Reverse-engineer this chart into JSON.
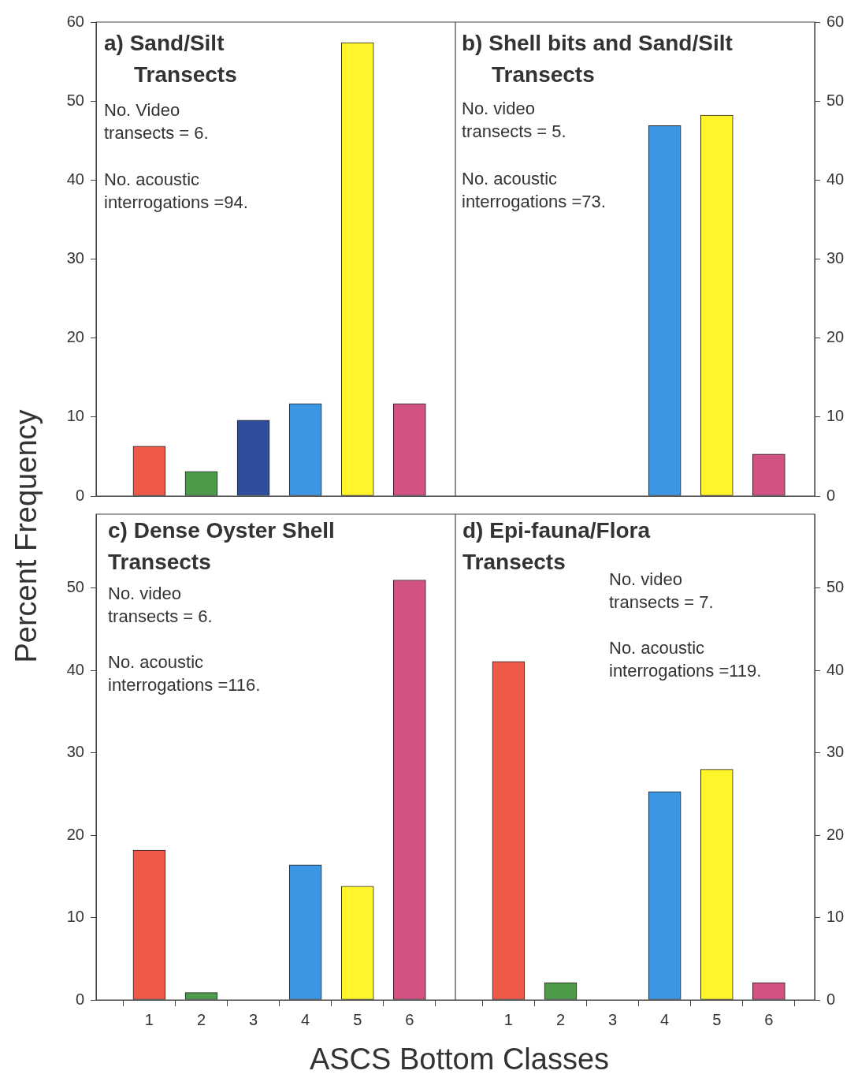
{
  "chart_data": [
    {
      "type": "bar",
      "title": "a) Sand/Silt Transects",
      "ylabel": "Percent Frequency",
      "categories": [
        "1",
        "2",
        "3",
        "4",
        "5",
        "6"
      ],
      "values": [
        6.3,
        3.1,
        9.6,
        11.7,
        57.4,
        11.7
      ],
      "colors": [
        "#ef5a48",
        "#4c9a4a",
        "#2e4d9c",
        "#3b97e3",
        "#fff52a",
        "#d25284"
      ],
      "ylim": [
        0,
        60
      ],
      "yticks": [
        0,
        10,
        20,
        30,
        40,
        50,
        60
      ],
      "tick_labels": "y",
      "annotations": [
        "No. Video\ntransects = 6.",
        "No. acoustic\ninterrogations =94."
      ]
    },
    {
      "type": "bar",
      "title": "b) Shell bits and Sand/Silt Transects",
      "categories": [
        "1",
        "2",
        "3",
        "4",
        "5",
        "6"
      ],
      "values": [
        0,
        0,
        0,
        46.9,
        48.2,
        5.3
      ],
      "colors": [
        "#ef5a48",
        "#4c9a4a",
        "#2e4d9c",
        "#3b97e3",
        "#fff52a",
        "#d25284"
      ],
      "ylim": [
        0,
        60
      ],
      "yticks": [
        0,
        10,
        20,
        30,
        40,
        50,
        60
      ],
      "tick_labels": "y",
      "annotations": [
        "No. video\ntransects = 5.",
        "No. acoustic\ninterrogations =73."
      ]
    },
    {
      "type": "bar",
      "title": "c) Dense Oyster Shell Transects",
      "xlabel": "ASCS Bottom Classes",
      "categories": [
        "1",
        "2",
        "3",
        "4",
        "5",
        "6"
      ],
      "values": [
        18.2,
        0.9,
        0,
        16.4,
        13.8,
        51.0
      ],
      "colors": [
        "#ef5a48",
        "#4c9a4a",
        "#2e4d9c",
        "#3b97e3",
        "#fff52a",
        "#d25284"
      ],
      "ylim": [
        0,
        59
      ],
      "yticks": [
        0,
        10,
        20,
        30,
        40,
        50
      ],
      "annotations": [
        "No. video\ntransects = 6.",
        "No. acoustic\ninterrogations =116."
      ]
    },
    {
      "type": "bar",
      "title": "d) Epi-fauna/Flora Transects",
      "categories": [
        "1",
        "2",
        "3",
        "4",
        "5",
        "6"
      ],
      "values": [
        41.1,
        2.1,
        0,
        25.3,
        28.0,
        2.1
      ],
      "colors": [
        "#ef5a48",
        "#4c9a4a",
        "#2e4d9c",
        "#3b97e3",
        "#fff52a",
        "#d25284"
      ],
      "ylim": [
        0,
        59
      ],
      "yticks": [
        0,
        10,
        20,
        30,
        40,
        50
      ],
      "annotations": [
        "No. video\ntransects = 7.",
        "No. acoustic\ninterrogations =119."
      ]
    }
  ]
}
